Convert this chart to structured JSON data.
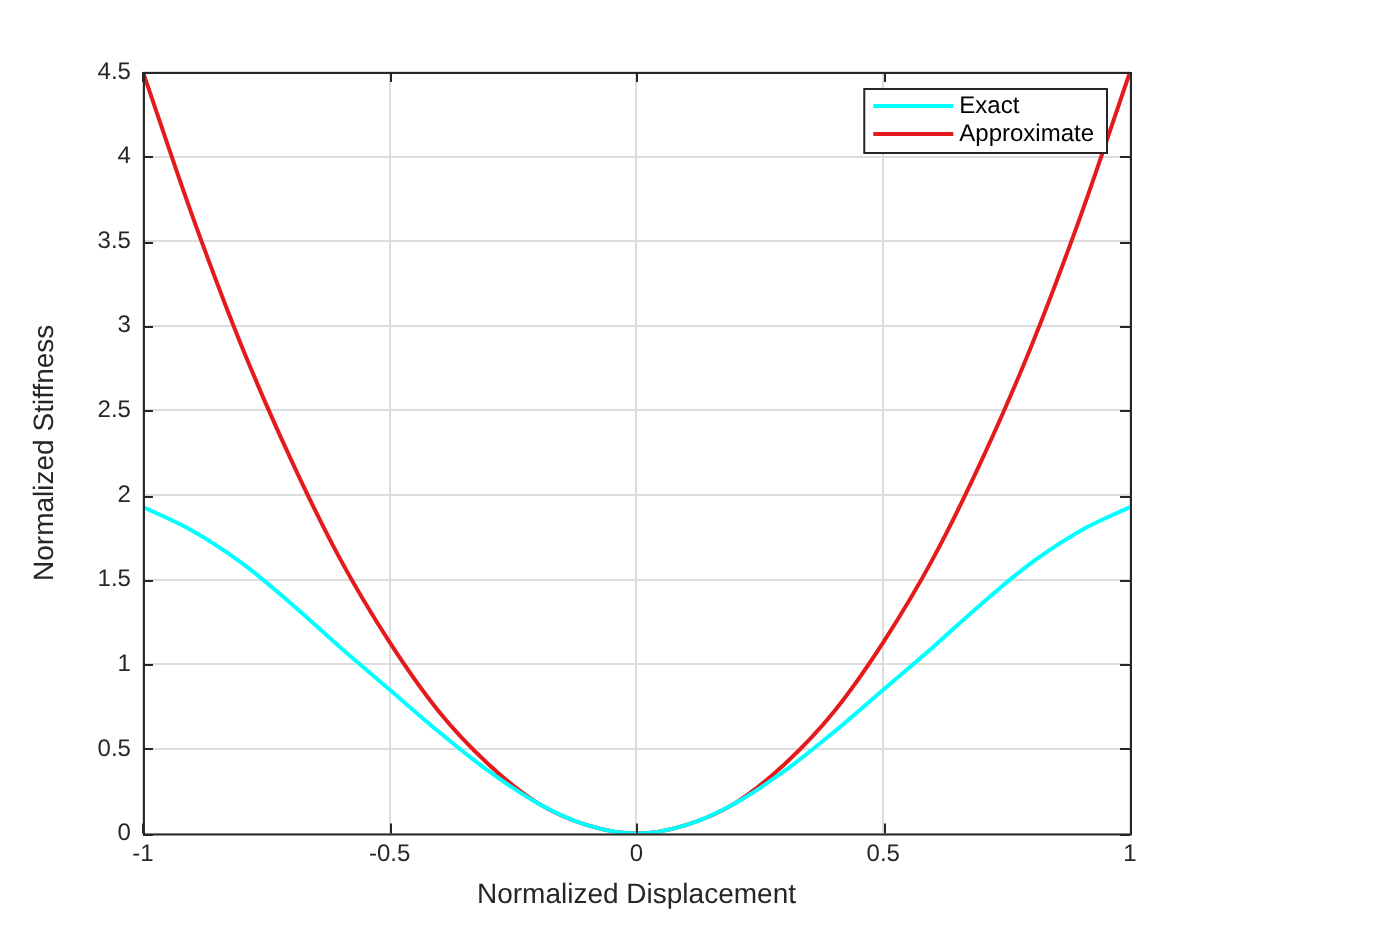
{
  "chart_data": {
    "type": "line",
    "xlabel": "Normalized Displacement",
    "ylabel": "Normalized Stiffness",
    "xlim": [
      -1,
      1
    ],
    "xticks": [
      -1,
      -0.5,
      0,
      0.5,
      1
    ],
    "ylim": [
      0,
      4.5
    ],
    "yticks": [
      0,
      0.5,
      1,
      1.5,
      2,
      2.5,
      3,
      3.5,
      4,
      4.5
    ],
    "grid": true,
    "legend": "top right",
    "marker": "none",
    "line_style": "solid",
    "x": [
      -1,
      -0.9,
      -0.8,
      -0.7,
      -0.6,
      -0.5,
      -0.4,
      -0.3,
      -0.2,
      -0.1,
      0,
      0.1,
      0.2,
      0.3,
      0.4,
      0.5,
      0.6,
      0.7,
      0.8,
      0.9,
      1
    ],
    "series": [
      {
        "name": "Exact",
        "color": "#00ffff",
        "values": [
          1.93,
          1.79,
          1.6,
          1.36,
          1.1,
          0.85,
          0.6,
          0.37,
          0.18,
          0.05,
          0,
          0.05,
          0.18,
          0.37,
          0.6,
          0.85,
          1.1,
          1.36,
          1.6,
          1.79,
          1.93
        ]
      },
      {
        "name": "Approximate",
        "color": "#e41a1c",
        "values": [
          4.5,
          3.65,
          2.88,
          2.21,
          1.62,
          1.13,
          0.72,
          0.41,
          0.18,
          0.05,
          0,
          0.05,
          0.18,
          0.41,
          0.72,
          1.13,
          1.62,
          2.21,
          2.88,
          3.65,
          4.5
        ]
      }
    ]
  }
}
